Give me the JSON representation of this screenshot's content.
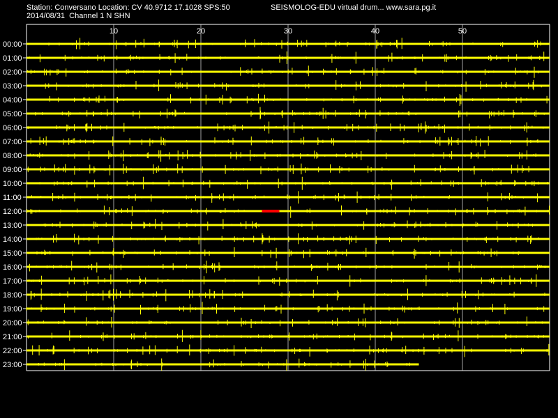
{
  "header": {
    "station_line": "Station: Conversano Location: CV 40.9712 17.1028 SPS:50",
    "date_line": "2014/08/31  Channel 1 N SHN",
    "app_line": "SEISMOLOG-EDU virtual drum... www.sara.pg.it"
  },
  "chart_data": {
    "type": "line",
    "x_ticks": [
      10,
      20,
      30,
      40,
      50
    ],
    "xlim": [
      0,
      60
    ],
    "rows": [
      "00:00",
      "01:00",
      "02:00",
      "03:00",
      "04:00",
      "05:00",
      "06:00",
      "07:00",
      "08:00",
      "09:00",
      "10:00",
      "11:00",
      "12:00",
      "13:00",
      "14:00",
      "15:00",
      "16:00",
      "17:00",
      "18:00",
      "19:00",
      "20:00",
      "21:00",
      "22:00",
      "23:00"
    ],
    "last_row_end_minute": 45,
    "event": {
      "row": "12:00",
      "start_minute": 27,
      "end_minute": 29
    },
    "colors": {
      "background": "#000000",
      "trace": "#ffff00",
      "event": "#ff0000",
      "grid": "#ffffff",
      "text": "#ffffff"
    }
  }
}
